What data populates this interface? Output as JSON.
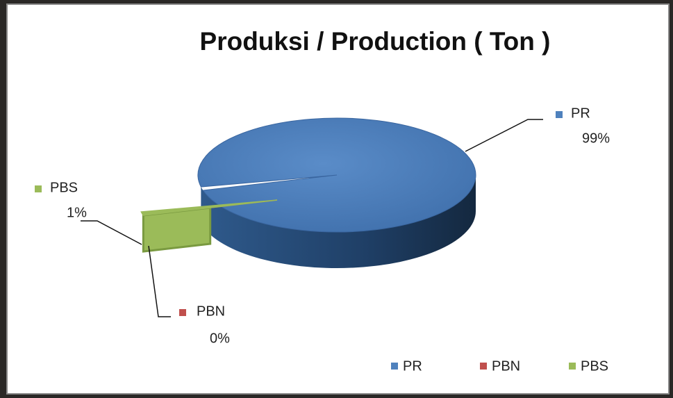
{
  "chart_data": {
    "type": "pie",
    "title": "Produksi / Production ( Ton )",
    "categories": [
      "PR",
      "PBN",
      "PBS"
    ],
    "values": [
      99,
      0,
      1
    ],
    "value_labels": [
      "99%",
      "0%",
      "1%"
    ],
    "colors": [
      "#4f81bd",
      "#c0504d",
      "#9bbb59"
    ],
    "legend": "bottom"
  }
}
